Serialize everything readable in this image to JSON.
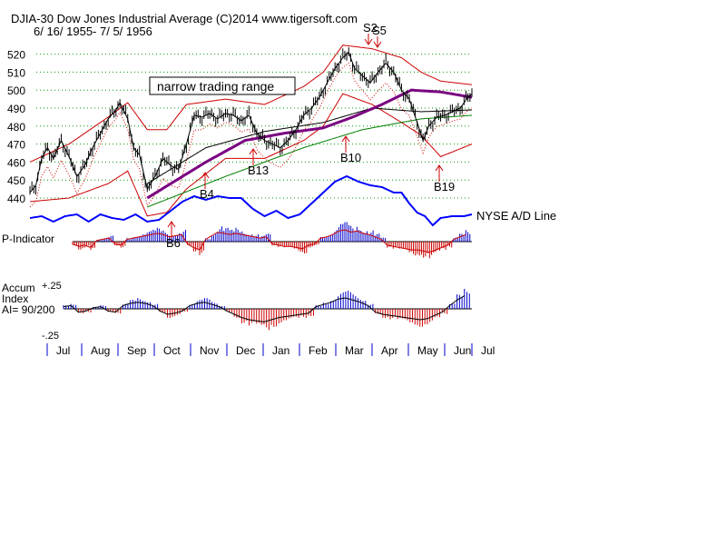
{
  "header": {
    "title": "DJIA-30  Dow Jones Industrial Average   (C)2014 www.tigersoft.com",
    "date_range": "6/ 16/ 1955- 7/ 5/ 1956"
  },
  "colors": {
    "price": "#000000",
    "upper_band": "#cc0000",
    "lower_band": "#cc0000",
    "ma_long": "#7a0080",
    "ma_green": "#008000",
    "ad_line": "#0000ff",
    "positive_bars": "#0000cc",
    "negative_bars": "#cc0000",
    "grid": "#009900",
    "signals": "#cc0000"
  },
  "annotations": {
    "range_label": "narrow trading range",
    "ad_label": "NYSE A/D Line",
    "p_indicator_label": "P-Indicator",
    "accum_label_1": "Accum",
    "accum_label_2": "Index",
    "accum_label_3": "AI= 90/200",
    "accum_top": "+.25",
    "accum_bottom": "-.25"
  },
  "signals": [
    {
      "label": "S2",
      "date": "Apr 1956",
      "value": 522
    },
    {
      "label": "S5",
      "date": "Apr 1956",
      "value": 521
    },
    {
      "label": "B10",
      "date": "Mar 1956",
      "value": 480
    },
    {
      "label": "B13",
      "date": "Dec 1955",
      "value": 470
    },
    {
      "label": "B4",
      "date": "Oct 1955",
      "value": 458
    },
    {
      "label": "B6",
      "date": "Oct 1955",
      "value": 440
    },
    {
      "label": "B19",
      "date": "Jun 1956",
      "value": 462
    }
  ],
  "chart_data": {
    "type": "line",
    "title": "DJIA-30  Dow Jones Industrial Average",
    "ylim": [
      430,
      525
    ],
    "yticks": [
      440,
      450,
      460,
      470,
      480,
      490,
      500,
      510,
      520
    ],
    "months": [
      "Jul",
      "Aug",
      "Sep",
      "Oct",
      "Nov",
      "Dec",
      "Jan",
      "Feb",
      "Mar",
      "Apr",
      "May",
      "Jun",
      "Jul"
    ],
    "price_keypoints": [
      [
        0,
        443
      ],
      [
        3,
        447
      ],
      [
        6,
        462
      ],
      [
        9,
        468
      ],
      [
        12,
        462
      ],
      [
        16,
        472
      ],
      [
        20,
        463
      ],
      [
        24,
        452
      ],
      [
        28,
        458
      ],
      [
        32,
        468
      ],
      [
        36,
        476
      ],
      [
        40,
        484
      ],
      [
        44,
        489
      ],
      [
        46,
        493
      ],
      [
        50,
        484
      ],
      [
        53,
        468
      ],
      [
        56,
        464
      ],
      [
        60,
        445
      ],
      [
        64,
        452
      ],
      [
        68,
        462
      ],
      [
        72,
        458
      ],
      [
        76,
        456
      ],
      [
        80,
        470
      ],
      [
        84,
        486
      ],
      [
        88,
        485
      ],
      [
        92,
        487
      ],
      [
        96,
        484
      ],
      [
        100,
        487
      ],
      [
        104,
        486
      ],
      [
        108,
        483
      ],
      [
        112,
        486
      ],
      [
        116,
        476
      ],
      [
        120,
        472
      ],
      [
        124,
        470
      ],
      [
        128,
        468
      ],
      [
        132,
        472
      ],
      [
        136,
        478
      ],
      [
        140,
        486
      ],
      [
        144,
        490
      ],
      [
        148,
        496
      ],
      [
        152,
        504
      ],
      [
        156,
        512
      ],
      [
        160,
        518
      ],
      [
        163,
        521
      ],
      [
        166,
        512
      ],
      [
        170,
        508
      ],
      [
        174,
        504
      ],
      [
        178,
        510
      ],
      [
        182,
        515
      ],
      [
        186,
        510
      ],
      [
        190,
        500
      ],
      [
        194,
        495
      ],
      [
        198,
        482
      ],
      [
        201,
        472
      ],
      [
        204,
        480
      ],
      [
        208,
        485
      ],
      [
        212,
        486
      ],
      [
        216,
        488
      ],
      [
        220,
        490
      ],
      [
        224,
        496
      ],
      [
        226,
        498
      ]
    ],
    "ad_keypoints": [
      [
        0,
        432
      ],
      [
        6,
        433
      ],
      [
        12,
        430
      ],
      [
        18,
        433
      ],
      [
        24,
        434
      ],
      [
        30,
        430
      ],
      [
        36,
        434
      ],
      [
        42,
        432
      ],
      [
        48,
        431
      ],
      [
        54,
        434
      ],
      [
        60,
        430
      ],
      [
        66,
        431
      ],
      [
        72,
        436
      ],
      [
        78,
        441
      ],
      [
        84,
        444
      ],
      [
        90,
        442
      ],
      [
        96,
        444
      ],
      [
        102,
        443
      ],
      [
        108,
        443
      ],
      [
        114,
        437
      ],
      [
        120,
        433
      ],
      [
        126,
        436
      ],
      [
        132,
        432
      ],
      [
        138,
        434
      ],
      [
        144,
        440
      ],
      [
        150,
        446
      ],
      [
        156,
        452
      ],
      [
        162,
        455
      ],
      [
        168,
        452
      ],
      [
        174,
        450
      ],
      [
        180,
        449
      ],
      [
        186,
        446
      ],
      [
        190,
        446
      ],
      [
        194,
        440
      ],
      [
        198,
        435
      ],
      [
        202,
        433
      ],
      [
        206,
        428
      ],
      [
        210,
        432
      ],
      [
        216,
        433
      ],
      [
        222,
        433
      ],
      [
        226,
        434
      ]
    ],
    "ma_long_keypoints": [
      [
        60,
        440
      ],
      [
        90,
        460
      ],
      [
        110,
        472
      ],
      [
        130,
        476
      ],
      [
        150,
        479
      ],
      [
        165,
        485
      ],
      [
        180,
        492
      ],
      [
        195,
        500
      ],
      [
        210,
        499
      ],
      [
        226,
        496
      ]
    ],
    "ma_green_keypoints": [
      [
        60,
        435
      ],
      [
        100,
        452
      ],
      [
        140,
        468
      ],
      [
        170,
        478
      ],
      [
        200,
        484
      ],
      [
        226,
        486
      ]
    ],
    "ma_black_keypoints": [
      [
        60,
        448
      ],
      [
        90,
        468
      ],
      [
        120,
        477
      ],
      [
        150,
        482
      ],
      [
        175,
        490
      ],
      [
        200,
        488
      ],
      [
        226,
        489
      ]
    ],
    "upper_band_keypoints": [
      [
        0,
        460
      ],
      [
        20,
        470
      ],
      [
        40,
        485
      ],
      [
        50,
        493
      ],
      [
        60,
        478
      ],
      [
        70,
        478
      ],
      [
        80,
        492
      ],
      [
        100,
        495
      ],
      [
        120,
        492
      ],
      [
        140,
        502
      ],
      [
        150,
        510
      ],
      [
        160,
        525
      ],
      [
        175,
        523
      ],
      [
        190,
        518
      ],
      [
        200,
        510
      ],
      [
        210,
        505
      ],
      [
        226,
        503
      ]
    ],
    "lower_band_keypoints": [
      [
        0,
        438
      ],
      [
        20,
        440
      ],
      [
        40,
        448
      ],
      [
        50,
        455
      ],
      [
        60,
        430
      ],
      [
        70,
        432
      ],
      [
        80,
        445
      ],
      [
        100,
        462
      ],
      [
        120,
        462
      ],
      [
        140,
        472
      ],
      [
        150,
        480
      ],
      [
        160,
        498
      ],
      [
        175,
        492
      ],
      [
        190,
        482
      ],
      [
        200,
        475
      ],
      [
        210,
        463
      ],
      [
        226,
        470
      ]
    ],
    "p_indicator": [
      -2,
      -4,
      -3,
      -5,
      1,
      2,
      3,
      -2,
      -3,
      2,
      3,
      4,
      5,
      6,
      7,
      6,
      4,
      5,
      6,
      -2,
      -5,
      -7,
      2,
      5,
      8,
      7,
      6,
      7,
      6,
      5,
      4,
      3,
      4,
      -2,
      -3,
      -4,
      -4,
      -5,
      -6,
      -3,
      -2,
      3,
      4,
      6,
      9,
      10,
      8,
      9,
      7,
      6,
      4,
      2,
      -3,
      -4,
      -5,
      -6,
      -7,
      -7,
      -8,
      -9,
      -7,
      -5,
      -3,
      2,
      4,
      6
    ],
    "accum_index": [
      2,
      3,
      -3,
      -2,
      1,
      2,
      -2,
      -3,
      3,
      5,
      6,
      5,
      3,
      -2,
      -5,
      -4,
      -2,
      3,
      5,
      6,
      4,
      2,
      -2,
      -5,
      -8,
      -10,
      -11,
      -12,
      -10,
      -8,
      -7,
      -6,
      -5,
      -4,
      2,
      4,
      6,
      9,
      10,
      8,
      6,
      3,
      -3,
      -5,
      -6,
      -7,
      -8,
      -9,
      -10,
      -9,
      -6,
      -3,
      3,
      8,
      12
    ]
  }
}
